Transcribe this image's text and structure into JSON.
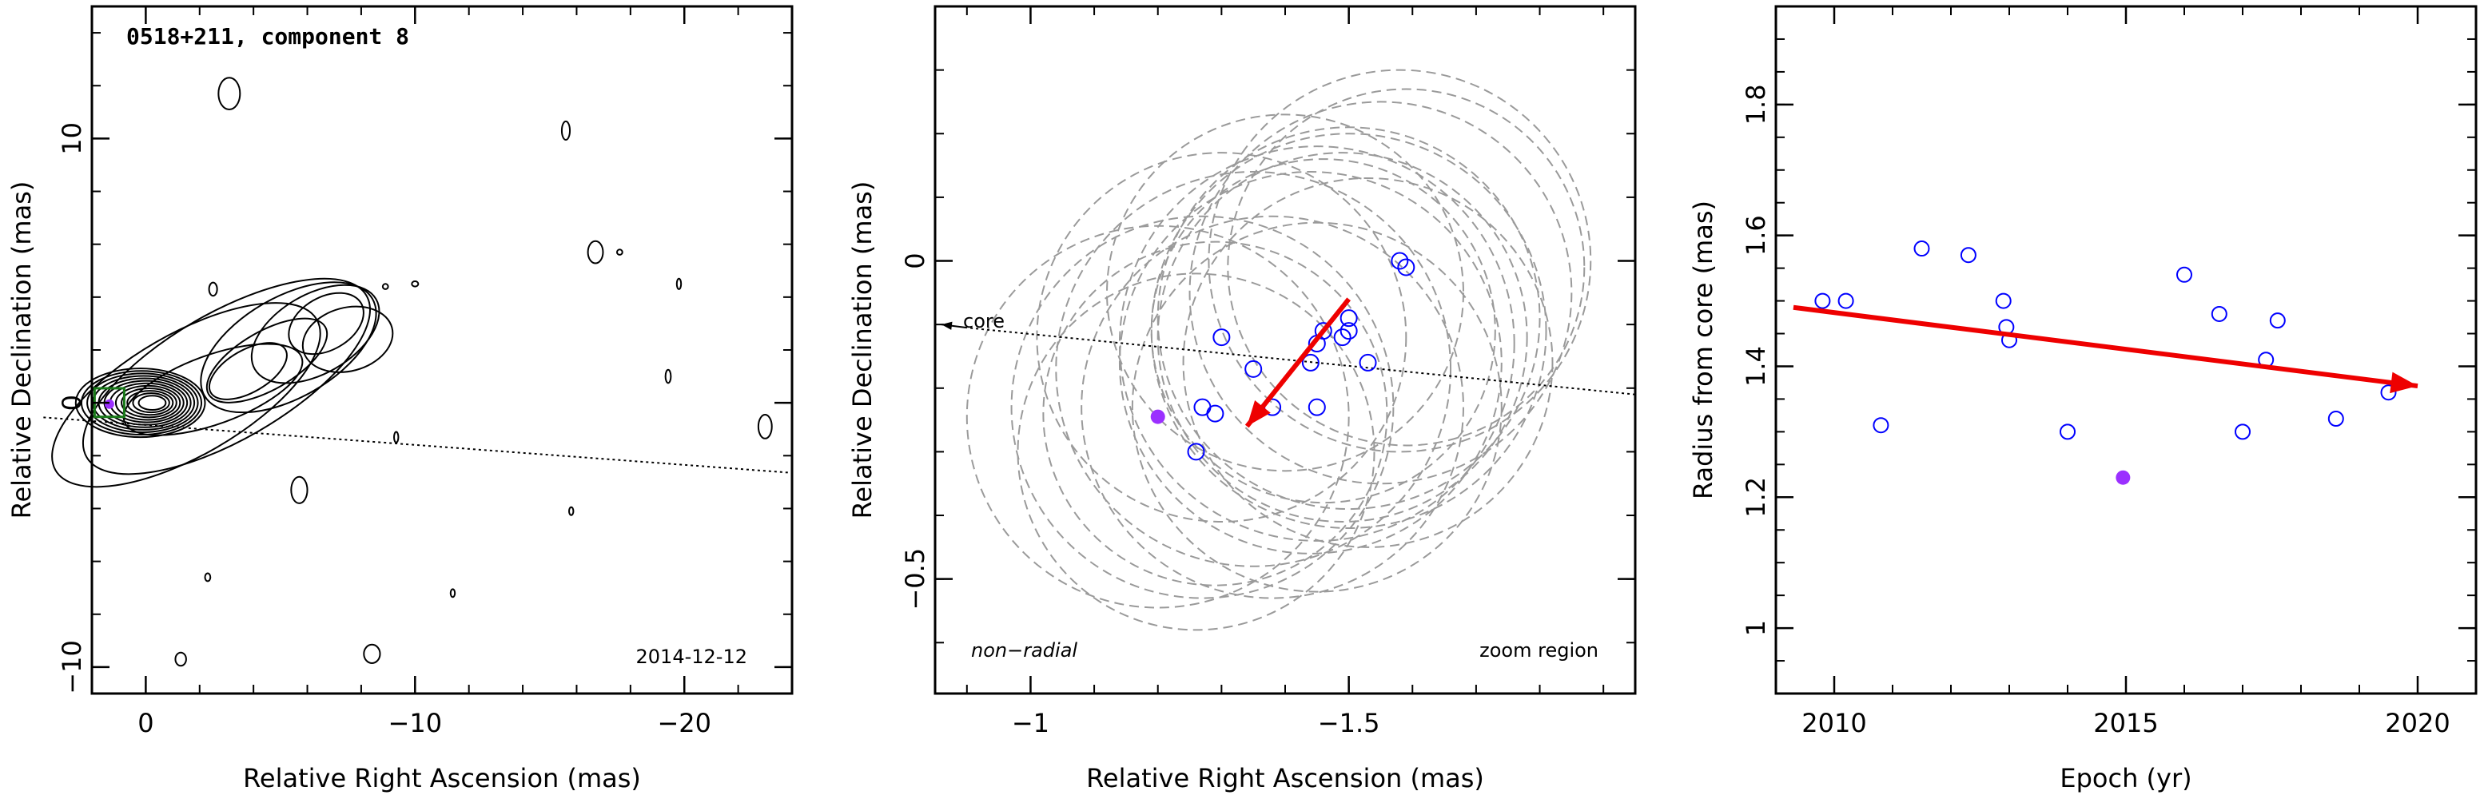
{
  "chart_data": [
    {
      "type": "contour",
      "title": "0518+211, component 8",
      "date_label": "2014-12-12",
      "xlabel": "Relative Right Ascension (mas)",
      "ylabel": "Relative Declination (mas)",
      "xlim": [
        2,
        -24
      ],
      "ylim": [
        -11,
        15
      ],
      "x_ticks": [
        0,
        -10,
        -20
      ],
      "y_ticks": [
        10,
        0,
        -10
      ],
      "x_tick_labels": [
        "0",
        "−10",
        "−20"
      ],
      "y_tick_labels": [
        "10",
        "0",
        "−10"
      ],
      "colors": {
        "zoom_box": "#1a7a1a",
        "highlight_point": "#9b30ff",
        "trajectory_line": "#000000"
      }
    },
    {
      "type": "scatter",
      "xlabel": "Relative Right Ascension (mas)",
      "ylabel": "Relative Declination (mas)",
      "xlim": [
        -0.85,
        -1.95
      ],
      "ylim": [
        -0.68,
        0.4
      ],
      "x_ticks": [
        -1,
        -1.5
      ],
      "y_ticks": [
        0,
        -0.5
      ],
      "x_tick_labels": [
        "−1",
        "−1.5"
      ],
      "y_tick_labels": [
        "0",
        "−0.5"
      ],
      "annotations": {
        "left": "non−radial",
        "right": "zoom region",
        "core": "core"
      },
      "points": [
        [
          -1.58,
          0.0
        ],
        [
          -1.59,
          -0.01
        ],
        [
          -1.5,
          -0.09
        ],
        [
          -1.5,
          -0.11
        ],
        [
          -1.49,
          -0.12
        ],
        [
          -1.45,
          -0.13
        ],
        [
          -1.44,
          -0.16
        ],
        [
          -1.46,
          -0.11
        ],
        [
          -1.53,
          -0.16
        ],
        [
          -1.3,
          -0.12
        ],
        [
          -1.35,
          -0.17
        ],
        [
          -1.38,
          -0.23
        ],
        [
          -1.45,
          -0.23
        ],
        [
          -1.27,
          -0.23
        ],
        [
          -1.29,
          -0.24
        ],
        [
          -1.26,
          -0.3
        ]
      ],
      "highlight_point": [
        -1.2,
        -0.245
      ],
      "error_circles": [
        [
          -1.2,
          -0.245,
          0.3
        ],
        [
          -1.26,
          -0.3,
          0.28
        ],
        [
          -1.27,
          -0.23,
          0.3
        ],
        [
          -1.29,
          -0.24,
          0.27
        ],
        [
          -1.3,
          -0.12,
          0.29
        ],
        [
          -1.35,
          -0.17,
          0.31
        ],
        [
          -1.38,
          -0.23,
          0.3
        ],
        [
          -1.45,
          -0.23,
          0.29
        ],
        [
          -1.45,
          -0.13,
          0.31
        ],
        [
          -1.44,
          -0.16,
          0.3
        ],
        [
          -1.46,
          -0.11,
          0.27
        ],
        [
          -1.49,
          -0.12,
          0.29
        ],
        [
          -1.5,
          -0.09,
          0.3
        ],
        [
          -1.5,
          -0.11,
          0.31
        ],
        [
          -1.53,
          -0.16,
          0.29
        ],
        [
          -1.58,
          0.0,
          0.3
        ],
        [
          -1.59,
          -0.01,
          0.28
        ],
        [
          -1.55,
          -0.05,
          0.3
        ],
        [
          -1.4,
          -0.05,
          0.28
        ]
      ],
      "motion_arrow": {
        "from": [
          -1.5,
          -0.06
        ],
        "to": [
          -1.34,
          -0.26
        ]
      },
      "core_line": {
        "from": [
          -1.95,
          -0.21
        ],
        "to": [
          -0.85,
          -0.1
        ]
      },
      "colors": {
        "points": "#0000ff",
        "highlight_point": "#9b30ff",
        "error_circles": "#9a9a9a",
        "arrow": "#ee0000"
      }
    },
    {
      "type": "scatter",
      "xlabel": "Epoch (yr)",
      "ylabel": "Radius from core (mas)",
      "xlim": [
        2009,
        2021
      ],
      "ylim": [
        0.9,
        1.95
      ],
      "x_ticks": [
        2010,
        2015,
        2020
      ],
      "y_ticks": [
        1,
        1.2,
        1.4,
        1.6,
        1.8
      ],
      "x_tick_labels": [
        "2010",
        "2015",
        "2020"
      ],
      "y_tick_labels": [
        "1",
        "1.2",
        "1.4",
        "1.6",
        "1.8"
      ],
      "points": [
        [
          2009.8,
          1.5
        ],
        [
          2010.2,
          1.5
        ],
        [
          2010.8,
          1.31
        ],
        [
          2011.5,
          1.58
        ],
        [
          2012.3,
          1.57
        ],
        [
          2012.9,
          1.5
        ],
        [
          2012.95,
          1.46
        ],
        [
          2013.0,
          1.44
        ],
        [
          2014.0,
          1.3
        ],
        [
          2016.0,
          1.54
        ],
        [
          2016.6,
          1.48
        ],
        [
          2017.0,
          1.3
        ],
        [
          2017.4,
          1.41
        ],
        [
          2017.6,
          1.47
        ],
        [
          2018.6,
          1.32
        ],
        [
          2019.5,
          1.36
        ]
      ],
      "highlight_point": [
        2014.95,
        1.23
      ],
      "trend_arrow": {
        "from": [
          2009.3,
          1.49
        ],
        "to": [
          2020.0,
          1.37
        ]
      },
      "colors": {
        "points": "#0000ff",
        "highlight_point": "#9b30ff",
        "arrow": "#ee0000"
      }
    }
  ]
}
